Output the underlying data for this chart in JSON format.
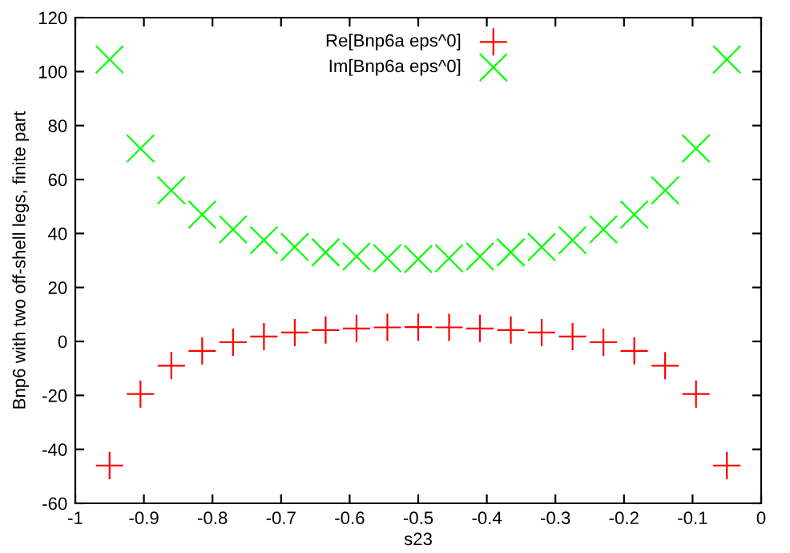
{
  "chart_data": {
    "type": "scatter",
    "xlabel": "s23",
    "ylabel": "Bnp6 with two off-shell legs, finite part",
    "x": [
      -0.95,
      -0.905,
      -0.86,
      -0.815,
      -0.77,
      -0.725,
      -0.68,
      -0.635,
      -0.59,
      -0.545,
      -0.5,
      -0.455,
      -0.41,
      -0.365,
      -0.32,
      -0.275,
      -0.23,
      -0.185,
      -0.14,
      -0.095,
      -0.05
    ],
    "series": [
      {
        "name": "Re[Bnp6a eps^0]",
        "color": "#ff0000",
        "marker": "plus",
        "values": [
          -46,
          -19.5,
          -9,
          -3.5,
          -0.3,
          1.8,
          3.3,
          4.2,
          4.8,
          5.2,
          5.3,
          5.2,
          4.8,
          4.2,
          3.3,
          1.8,
          -0.3,
          -3.5,
          -9,
          -19.5,
          -46
        ]
      },
      {
        "name": "Im[Bnp6a eps^0]",
        "color": "#00ff00",
        "marker": "cross",
        "values": [
          104.5,
          71.5,
          56,
          47,
          41.5,
          37.5,
          35,
          33,
          31.5,
          30.8,
          30.5,
          30.8,
          31.5,
          33,
          35,
          37.5,
          41.5,
          47,
          56,
          71.5,
          104.5
        ]
      }
    ],
    "xlim": [
      -1,
      0
    ],
    "xticks": [
      -1,
      -0.9,
      -0.8,
      -0.7,
      -0.6,
      -0.5,
      -0.4,
      -0.3,
      -0.2,
      -0.1,
      0
    ],
    "ylim": [
      -60,
      120
    ],
    "yticks": [
      -60,
      -40,
      -20,
      0,
      20,
      40,
      60,
      80,
      100,
      120
    ],
    "grid": false,
    "legend": "top"
  }
}
